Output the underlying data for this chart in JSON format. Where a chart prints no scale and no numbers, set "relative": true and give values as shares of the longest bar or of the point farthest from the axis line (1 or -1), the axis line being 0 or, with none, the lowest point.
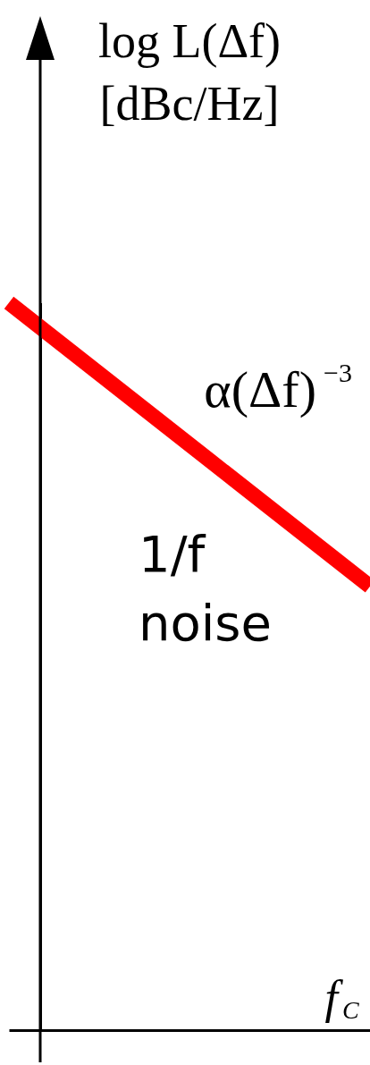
{
  "chart_data": {
    "type": "line",
    "relative": true,
    "categories": [
      null,
      null
    ],
    "series": [
      {
        "color": "#ff0000",
        "values": [
          1,
          0.61
        ]
      }
    ],
    "ylabel": "log L(Δf)\n[dBc/Hz]",
    "xlabel": "f$_{C}$",
    "annotations": [
      "α(Δf)$^{−3}$",
      "1/f\nnoise"
    ]
  }
}
